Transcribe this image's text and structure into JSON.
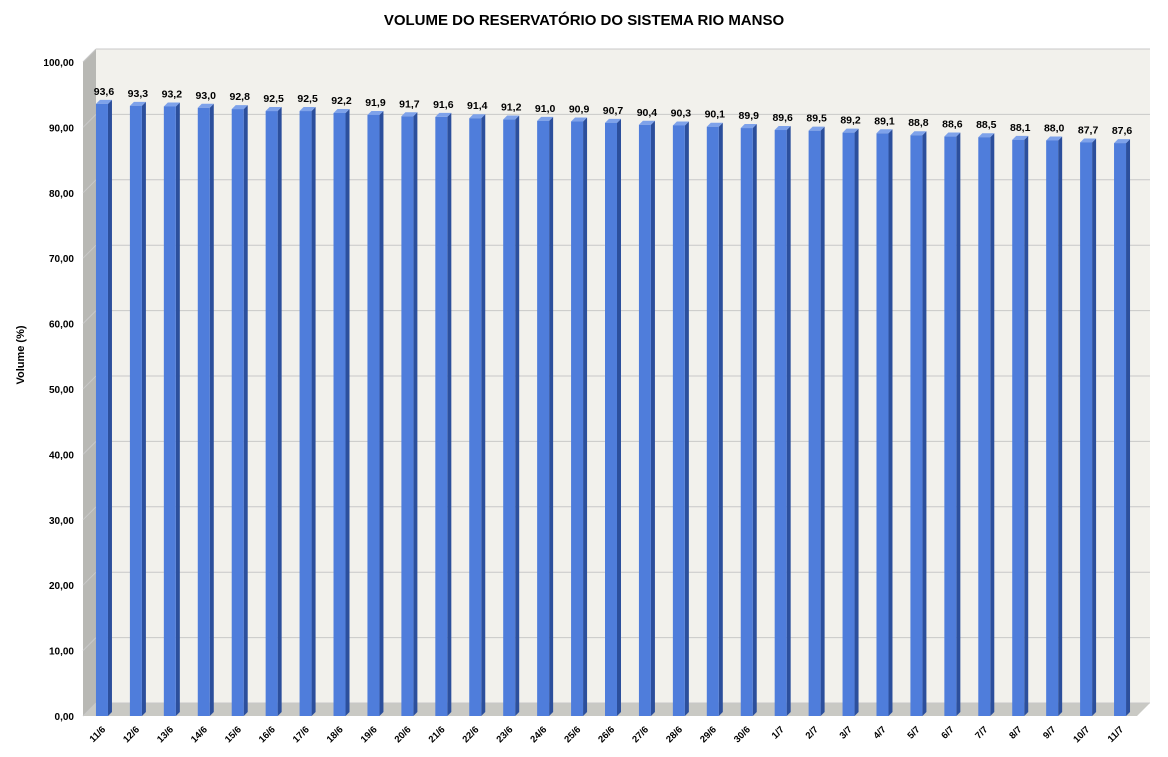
{
  "chart_data": {
    "type": "bar",
    "title": "VOLUME DO RESERVATÓRIO DO SISTEMA RIO MANSO",
    "xlabel": "",
    "ylabel": "Volume (%)",
    "ylim": [
      0,
      100
    ],
    "yticks": [
      "0,00",
      "10,00",
      "20,00",
      "30,00",
      "40,00",
      "50,00",
      "60,00",
      "70,00",
      "80,00",
      "90,00",
      "100,00"
    ],
    "grid": true,
    "categories": [
      "11/6",
      "12/6",
      "13/6",
      "14/6",
      "15/6",
      "16/6",
      "17/6",
      "18/6",
      "19/6",
      "20/6",
      "21/6",
      "22/6",
      "23/6",
      "24/6",
      "25/6",
      "26/6",
      "27/6",
      "28/6",
      "29/6",
      "30/6",
      "1/7",
      "2/7",
      "3/7",
      "4/7",
      "5/7",
      "6/7",
      "7/7",
      "8/7",
      "9/7",
      "10/7",
      "11/7"
    ],
    "values": [
      93.6,
      93.3,
      93.2,
      93.0,
      92.8,
      92.5,
      92.5,
      92.2,
      91.9,
      91.7,
      91.6,
      91.4,
      91.2,
      91.0,
      90.9,
      90.7,
      90.4,
      90.3,
      90.1,
      89.9,
      89.6,
      89.5,
      89.2,
      89.1,
      88.8,
      88.6,
      88.5,
      88.1,
      88.0,
      87.7,
      87.6
    ],
    "value_labels": [
      "93,6",
      "93,3",
      "93,2",
      "93,0",
      "92,8",
      "92,5",
      "92,5",
      "92,2",
      "91,9",
      "91,7",
      "91,6",
      "91,4",
      "91,2",
      "91,0",
      "90,9",
      "90,7",
      "90,4",
      "90,3",
      "90,1",
      "89,9",
      "89,6",
      "89,5",
      "89,2",
      "89,1",
      "88,8",
      "88,6",
      "88,5",
      "88,1",
      "88,0",
      "87,7",
      "87,6"
    ],
    "colors": {
      "bar_front": "#4f7ddb",
      "bar_side": "#2c4f9c",
      "bar_top": "#7ea2ea",
      "wall": "#f2f1ec",
      "wall_side": "#b8b8b4",
      "floor": "#c9c9c4",
      "grid": "#c8c8c8"
    }
  }
}
